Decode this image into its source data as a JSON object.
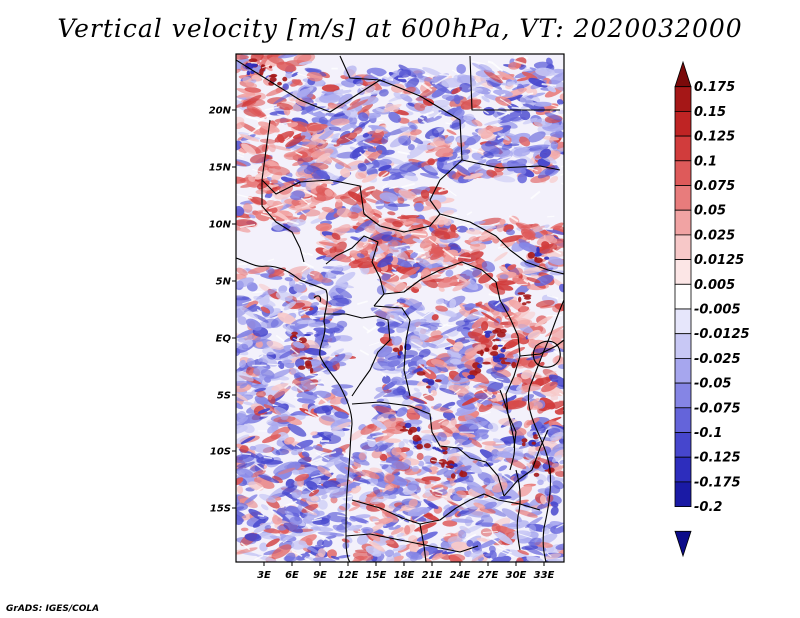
{
  "title": "Vertical velocity [m/s] at 600hPa, VT: 2020032000",
  "credit": "GrADS: IGES/COLA",
  "map": {
    "variable": "Vertical velocity",
    "units": "m/s",
    "level": "600hPa",
    "valid_time": "2020032000",
    "lon_labels": [
      "3E",
      "6E",
      "9E",
      "12E",
      "15E",
      "18E",
      "21E",
      "24E",
      "27E",
      "30E",
      "33E"
    ],
    "lat_labels": [
      "20N",
      "15N",
      "10N",
      "5N",
      "EQ",
      "5S",
      "10S",
      "15S"
    ],
    "colorbar": {
      "labels": [
        "0.175",
        "0.15",
        "0.125",
        "0.1",
        "0.075",
        "0.05",
        "0.025",
        "0.0125",
        "0.005",
        "-0.005",
        "-0.0125",
        "-0.025",
        "-0.05",
        "-0.075",
        "-0.1",
        "-0.125",
        "-0.175",
        "-0.2"
      ],
      "colors": [
        "#7a0a0a",
        "#a51717",
        "#bf2424",
        "#d13c3c",
        "#de5a5a",
        "#e87c7c",
        "#f1a3a3",
        "#f7c8c8",
        "#fce6e6",
        "#ffffff",
        "#e6e6fb",
        "#c8c8f5",
        "#a6a6ee",
        "#8585e5",
        "#6464da",
        "#4646cd",
        "#2d2dbd",
        "#1a1aa5",
        "#0c0c8a"
      ]
    }
  }
}
